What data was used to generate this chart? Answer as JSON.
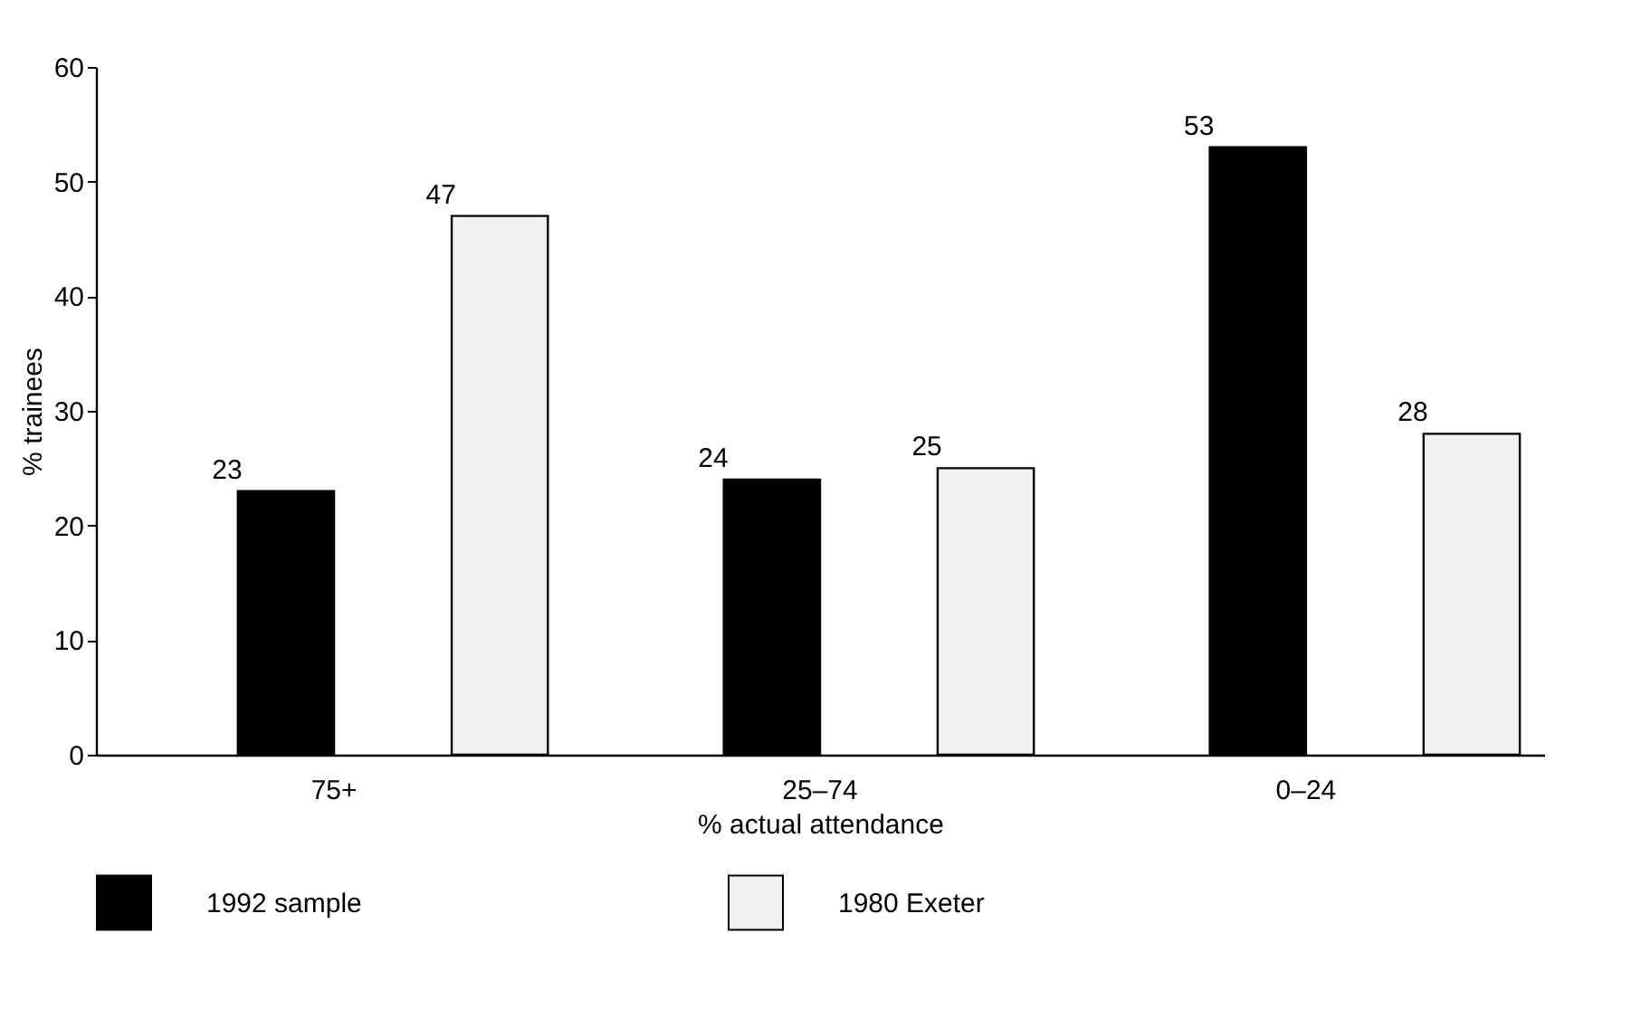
{
  "chart_data": {
    "type": "bar",
    "xlabel": "% actual attendance",
    "ylabel": "% trainees",
    "categories": [
      "75+",
      "25–74",
      "0–24"
    ],
    "series": [
      {
        "name": "1992 sample",
        "color": "#000000",
        "values": [
          23,
          24,
          53
        ]
      },
      {
        "name": "1980 Exeter",
        "color": "#f0f0f0",
        "values": [
          47,
          25,
          28
        ]
      }
    ],
    "ylim": [
      0,
      60
    ],
    "yticks": [
      0,
      10,
      20,
      30,
      40,
      50,
      60
    ],
    "grid": false,
    "legend": "bottom",
    "data_labels": true
  }
}
